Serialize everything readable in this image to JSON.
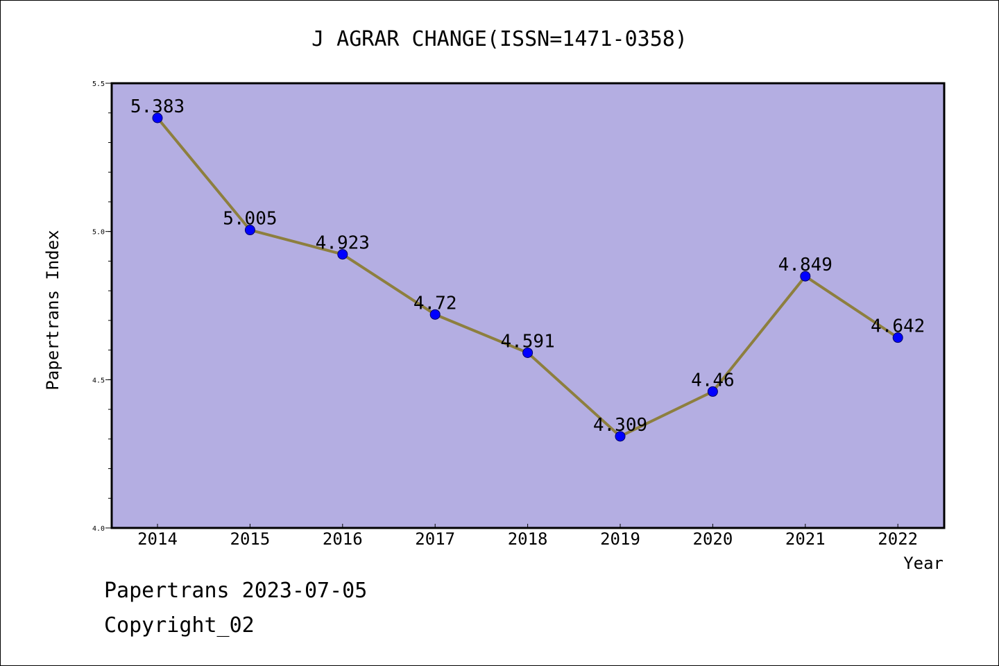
{
  "chart_data": {
    "type": "line",
    "title": "J AGRAR CHANGE(ISSN=1471-0358)",
    "xlabel": "Year",
    "ylabel": "Papertrans Index",
    "categories": [
      "2014",
      "2015",
      "2016",
      "2017",
      "2018",
      "2019",
      "2020",
      "2021",
      "2022"
    ],
    "series": [
      {
        "values": [
          5.383,
          5.005,
          4.923,
          4.72,
          4.591,
          4.309,
          4.46,
          4.849,
          4.642
        ],
        "labels": [
          "5.383",
          "5.005",
          "4.923",
          "4.72",
          "4.591",
          "4.309",
          "4.46",
          "4.849",
          "4.642"
        ]
      }
    ],
    "ylim": [
      4.0,
      5.5
    ],
    "yticks": [
      "4.0",
      "4.5",
      "5.0",
      "5.5"
    ],
    "grid": false,
    "colors": {
      "plot_background": "#b4aee2",
      "line": "#8d7f3e",
      "marker": "#0000ff"
    }
  },
  "footer": {
    "line1": "Papertrans 2023-07-05",
    "line2": "Copyright_02"
  }
}
